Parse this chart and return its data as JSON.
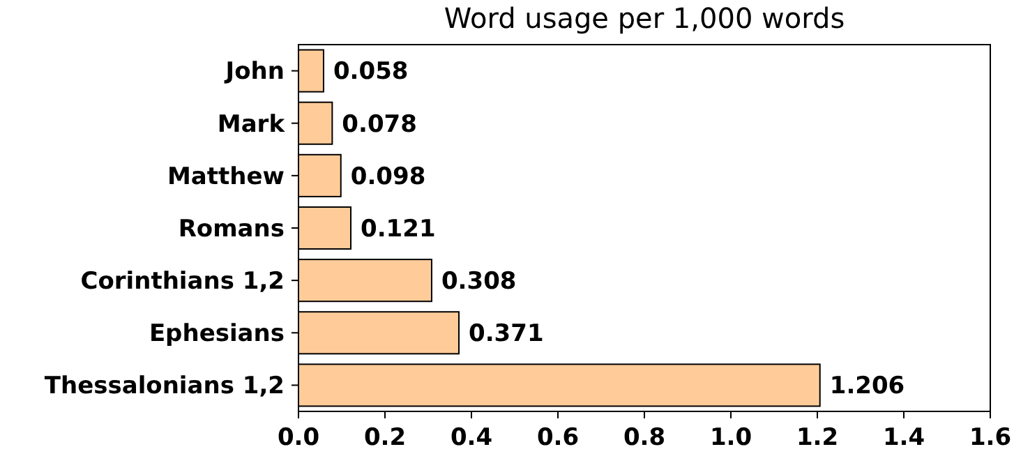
{
  "chart_data": {
    "type": "bar",
    "orientation": "horizontal",
    "title": "Word usage per 1,000 words",
    "categories": [
      "John",
      "Mark",
      "Matthew",
      "Romans",
      "Corinthians 1,2",
      "Ephesians",
      "Thessalonians 1,2"
    ],
    "values": [
      0.058,
      0.078,
      0.098,
      0.121,
      0.308,
      0.371,
      1.206
    ],
    "color": "#ffcc99",
    "data_labels": true,
    "xlim": [
      0,
      1.6
    ],
    "xticks": [
      {
        "value": 0,
        "label": "0.0"
      },
      0.2,
      0.4,
      0.6,
      0.8,
      {
        "value": 1,
        "label": "1.0"
      },
      1.2,
      1.4,
      1.6
    ]
  }
}
